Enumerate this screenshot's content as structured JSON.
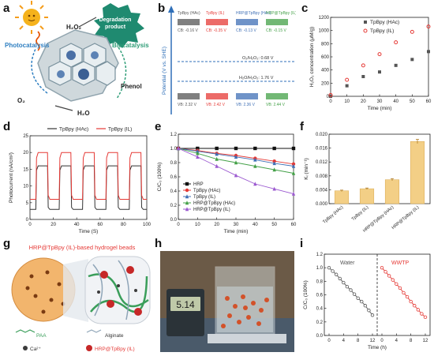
{
  "panel_labels": {
    "a": "a",
    "b": "b",
    "c": "c",
    "d": "d",
    "e": "e",
    "f": "f",
    "g": "g",
    "h": "h",
    "i": "i"
  },
  "panel_a": {
    "label_degradation": "Degradation product",
    "label_h2o2": "H₂O₂",
    "label_photocatalysis": "Photocatalysis",
    "label_biocatalysis": "Biocatalysis",
    "label_phenol": "Phenol",
    "label_o2": "O₂",
    "label_h2o": "H₂O"
  },
  "panel_b": {
    "ylabel": "Potential (V vs. SHE)",
    "materials": [
      {
        "name": "TpBpy (HAc)",
        "cb": "CB: -0.16 V",
        "vb": "VB: 2.32 V",
        "color": "#555555"
      },
      {
        "name": "TpBpy (IL)",
        "cb": "CB: -0.35 V",
        "vb": "VB: 2.42 V",
        "color": "#e53935"
      },
      {
        "name": "HRP@TpBpy (HAc)",
        "cb": "CB: -0.13 V",
        "vb": "VB: 2.36 V",
        "color": "#3f6fb5"
      },
      {
        "name": "HRP@TpBpy (IL)",
        "cb": "CB: -0.15 V",
        "vb": "VB: 2.44 V",
        "color": "#43a047"
      }
    ],
    "o2_line": "O₂/H₂O₂: 0.68 V",
    "h2o2_line": "H₂O/H₂O₂: 1.76 V"
  },
  "panel_c": {
    "chart_data": {
      "type": "scatter",
      "xlabel": "Time (min)",
      "ylabel": "H₂O₂ concentration (μM/g)",
      "xlim": [
        0,
        60
      ],
      "ylim": [
        0,
        1200
      ],
      "xticks": [
        0,
        10,
        20,
        30,
        40,
        50,
        60
      ],
      "yticks": [
        0,
        200,
        400,
        600,
        800,
        1000,
        1200
      ],
      "series": [
        {
          "name": "TpBpy (HAc)",
          "color": "#555555",
          "x": [
            0,
            10,
            20,
            30,
            40,
            50,
            60
          ],
          "y": [
            0,
            160,
            300,
            370,
            470,
            560,
            680
          ]
        },
        {
          "name": "TpBpy (IL)",
          "color": "#e53935",
          "x": [
            0,
            10,
            20,
            30,
            40,
            50,
            60
          ],
          "y": [
            20,
            250,
            470,
            640,
            820,
            980,
            1060
          ]
        }
      ]
    }
  },
  "panel_d": {
    "chart_data": {
      "type": "line",
      "xlabel": "Time (S)",
      "ylabel": "Photocurrent (nA/cm²)",
      "xlim": [
        0,
        100
      ],
      "ylim": [
        0,
        25
      ],
      "xticks": [
        0,
        20,
        40,
        60,
        80,
        100
      ],
      "yticks": [
        0,
        5,
        10,
        15,
        20,
        25
      ],
      "series": [
        {
          "name": "TpBpy (HAc)",
          "color": "#333333",
          "low": 3,
          "high": 16
        },
        {
          "name": "TpBpy (IL)",
          "color": "#e53935",
          "low": 6,
          "high": 20
        }
      ],
      "on_periods": [
        [
          5,
          15
        ],
        [
          25,
          35
        ],
        [
          45,
          55
        ],
        [
          65,
          75
        ],
        [
          85,
          95
        ]
      ]
    }
  },
  "panel_e": {
    "chart_data": {
      "type": "line",
      "xlabel": "Time (min)",
      "ylabel": "C/C₀ (100%)",
      "xlim": [
        0,
        60
      ],
      "ylim": [
        0.0,
        1.2
      ],
      "xticks": [
        0,
        10,
        20,
        30,
        40,
        50,
        60
      ],
      "yticks": [
        0.0,
        0.2,
        0.4,
        0.6,
        0.8,
        1.0,
        1.2
      ],
      "x": [
        0,
        10,
        20,
        30,
        40,
        50,
        60
      ],
      "series": [
        {
          "name": "HRP",
          "color": "#111111",
          "marker": "square",
          "y": [
            1.0,
            1.0,
            1.0,
            1.0,
            1.0,
            1.0,
            1.0
          ]
        },
        {
          "name": "TpBpy (HAc)",
          "color": "#e53935",
          "marker": "circle",
          "y": [
            1.0,
            0.97,
            0.93,
            0.9,
            0.86,
            0.82,
            0.78
          ]
        },
        {
          "name": "TpBpy (IL)",
          "color": "#3f6fb5",
          "marker": "triangle",
          "y": [
            1.0,
            0.96,
            0.92,
            0.88,
            0.84,
            0.79,
            0.75
          ]
        },
        {
          "name": "HRP@TpBpy (HAc)",
          "color": "#43a047",
          "marker": "triangle",
          "y": [
            1.0,
            0.93,
            0.85,
            0.8,
            0.75,
            0.7,
            0.65
          ]
        },
        {
          "name": "HRP@TpBpy (IL)",
          "color": "#9b59d0",
          "marker": "triangle",
          "y": [
            1.0,
            0.88,
            0.75,
            0.62,
            0.5,
            0.43,
            0.36
          ]
        }
      ]
    }
  },
  "panel_f": {
    "chart_data": {
      "type": "bar",
      "ylabel": "Kᵢ (min⁻¹)",
      "ylim": [
        0,
        0.02
      ],
      "yticks": [
        0.0,
        0.004,
        0.008,
        0.012,
        0.016,
        0.02
      ],
      "categories": [
        "TpBpy (HAc)",
        "TpBpy (IL)",
        "HRP@TpBpy (HAc)",
        "HRP@TpBpy (IL)"
      ],
      "values": [
        0.0037,
        0.0043,
        0.0069,
        0.0179
      ],
      "errors": [
        0.0002,
        0.0002,
        0.0003,
        0.0006
      ],
      "color": "#f3cf86"
    }
  },
  "panel_g": {
    "title": "HRP@TpBpy (IL)-based hydrogel beads",
    "legend_paa": "PAA",
    "legend_alginate": "Alginate",
    "legend_ca": "Ca²⁺",
    "legend_hrp": "HRP@TpBpy (IL)"
  },
  "panel_h": {
    "display": "5.14"
  },
  "panel_i": {
    "chart_data": {
      "type": "line",
      "ylabel": "C/C₀ (100%)",
      "xlabel": "Time (h)",
      "ylim": [
        0,
        1.2
      ],
      "yticks": [
        0.0,
        0.2,
        0.4,
        0.6,
        0.8,
        1.0,
        1.2
      ],
      "segments": [
        {
          "name": "Water",
          "color": "#555555",
          "xticks": [
            0,
            4,
            8,
            12
          ],
          "x": [
            0,
            1,
            2,
            3,
            4,
            5,
            6,
            7,
            8,
            9,
            10,
            11,
            12
          ],
          "y": [
            1.0,
            0.95,
            0.9,
            0.84,
            0.78,
            0.72,
            0.67,
            0.61,
            0.55,
            0.5,
            0.44,
            0.37,
            0.3
          ]
        },
        {
          "name": "WWTP",
          "color": "#e53935",
          "xticks": [
            0,
            4,
            8,
            12
          ],
          "x": [
            0,
            1,
            2,
            3,
            4,
            5,
            6,
            7,
            8,
            9,
            10,
            11,
            12
          ],
          "y": [
            1.0,
            0.94,
            0.88,
            0.82,
            0.76,
            0.7,
            0.63,
            0.57,
            0.5,
            0.44,
            0.38,
            0.32,
            0.27
          ]
        }
      ]
    }
  }
}
